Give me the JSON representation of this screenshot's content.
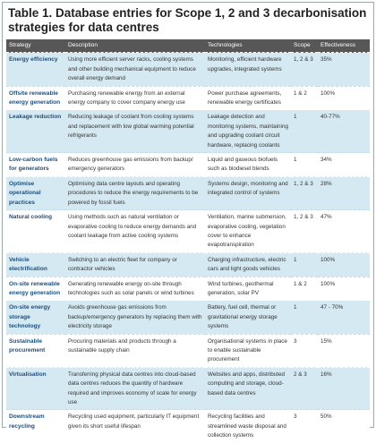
{
  "title": "Table 1. Database entries for Scope 1, 2 and 3 decarbonisation strategies for data centres",
  "table": {
    "headers": [
      "Strategy",
      "Description",
      "Technologies",
      "Scope",
      "Effectiveness"
    ],
    "rows": [
      [
        "Energy efficiency",
        "Using more efficient server racks, cooling systems and other building mechanical equipment to reduce overall energy demand",
        "Monitoring, efficient hardware upgrades, integrated systems",
        "1, 2 & 3",
        "35%"
      ],
      [
        "Offsite renewable energy generation",
        "Purchasing renewable energy from an external energy company to cover company energy use",
        "Power purchase agreements, renewable energy certificates",
        "1 & 2",
        "100%"
      ],
      [
        "Leakage reduction",
        "Reducing leakage of coolant from cooling systems and replacement with low global warming potential refrigerants",
        "Leakage detection and monitoring systems, maintaining and upgrading coolant circuit hardware, replacing coolants",
        "1",
        "40-77%"
      ],
      [
        "Low-carbon fuels for generators",
        "Reduces greenhouse gas emissions from backup/ emergency generators",
        "Liquid and gaseous biofuels such as biodiesel blends",
        "1",
        "34%"
      ],
      [
        "Optimise operational practices",
        "Optimising data centre layouts and operating procedures to reduce the energy requirements to be powered by fossil fuels",
        "Systems design, monitoring and integrated control of systems",
        "1, 2 & 3",
        "28%"
      ],
      [
        "Natural cooling",
        "Using methods such as natural ventilation or evaporative cooling to reduce energy demands and coolant leakage from active cooling systems",
        "Ventilation, marine submersion, evaporative cooling, vegetation cover to enhance evapotranspiration",
        "1, 2 & 3",
        "47%"
      ],
      [
        "Vehicle electrification",
        "Switching to an electric fleet for company or contractor vehicles",
        "Charging infrastructure, electric cars and light goods vehicles",
        "1",
        "100%"
      ],
      [
        "On-site renewable energy generation",
        "Generating renewable energy on-site through technologies such as solar panels or wind turbines",
        "Wind turbines, geothermal generation, solar PV",
        "1 & 2",
        "100%"
      ],
      [
        "On-site energy storage technology",
        "Avoids greenhouse gas emissions from backup/emergency generators by replacing them with electricity storage",
        "Battery, fuel cell, thermal or gravitational energy storage systems",
        "1",
        "47 - 70%"
      ],
      [
        "Sustainable procurement",
        "Procuring materials and products through a sustainable supply chain",
        "Organisational systems in place to enable sustainable procurement",
        "3",
        "15%"
      ],
      [
        "Virtualisation",
        "Transferring physical data centres into cloud-based data centres reduces the quantity of hardware required and improves economy of scale for energy use",
        "Websites and apps, distributed computing and storage, cloud-based data centres",
        "2 & 3",
        "16%"
      ],
      [
        "Downstream recycling",
        "Recycling used equipment, particularly IT equipment given its short useful lifespan",
        "Recycling facilities and streamlined waste disposal and collection systems",
        "3",
        "50%"
      ]
    ]
  }
}
